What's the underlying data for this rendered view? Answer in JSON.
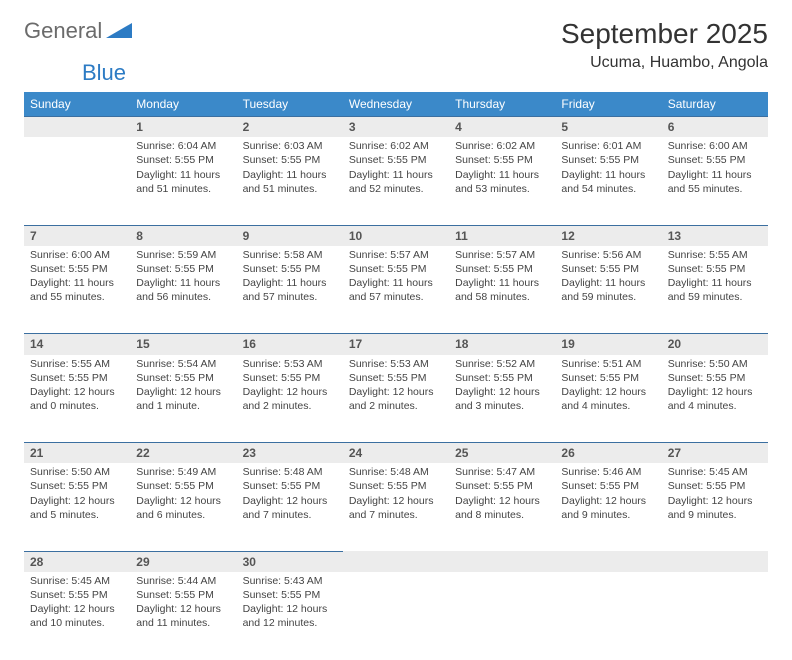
{
  "logo": {
    "general": "General",
    "blue": "Blue"
  },
  "title": "September 2025",
  "location": "Ucuma, Huambo, Angola",
  "colors": {
    "header_bg": "#3b89c9",
    "header_text": "#ffffff",
    "daynum_bg": "#ececec",
    "row_border": "#3b6fa0",
    "accent": "#2c7bc4",
    "logo_gray": "#6b6b6b"
  },
  "day_headers": [
    "Sunday",
    "Monday",
    "Tuesday",
    "Wednesday",
    "Thursday",
    "Friday",
    "Saturday"
  ],
  "weeks": [
    {
      "nums": [
        "",
        "1",
        "2",
        "3",
        "4",
        "5",
        "6"
      ],
      "cells": [
        null,
        {
          "sunrise": "6:04 AM",
          "sunset": "5:55 PM",
          "daylight": "11 hours and 51 minutes."
        },
        {
          "sunrise": "6:03 AM",
          "sunset": "5:55 PM",
          "daylight": "11 hours and 51 minutes."
        },
        {
          "sunrise": "6:02 AM",
          "sunset": "5:55 PM",
          "daylight": "11 hours and 52 minutes."
        },
        {
          "sunrise": "6:02 AM",
          "sunset": "5:55 PM",
          "daylight": "11 hours and 53 minutes."
        },
        {
          "sunrise": "6:01 AM",
          "sunset": "5:55 PM",
          "daylight": "11 hours and 54 minutes."
        },
        {
          "sunrise": "6:00 AM",
          "sunset": "5:55 PM",
          "daylight": "11 hours and 55 minutes."
        }
      ]
    },
    {
      "nums": [
        "7",
        "8",
        "9",
        "10",
        "11",
        "12",
        "13"
      ],
      "cells": [
        {
          "sunrise": "6:00 AM",
          "sunset": "5:55 PM",
          "daylight": "11 hours and 55 minutes."
        },
        {
          "sunrise": "5:59 AM",
          "sunset": "5:55 PM",
          "daylight": "11 hours and 56 minutes."
        },
        {
          "sunrise": "5:58 AM",
          "sunset": "5:55 PM",
          "daylight": "11 hours and 57 minutes."
        },
        {
          "sunrise": "5:57 AM",
          "sunset": "5:55 PM",
          "daylight": "11 hours and 57 minutes."
        },
        {
          "sunrise": "5:57 AM",
          "sunset": "5:55 PM",
          "daylight": "11 hours and 58 minutes."
        },
        {
          "sunrise": "5:56 AM",
          "sunset": "5:55 PM",
          "daylight": "11 hours and 59 minutes."
        },
        {
          "sunrise": "5:55 AM",
          "sunset": "5:55 PM",
          "daylight": "11 hours and 59 minutes."
        }
      ]
    },
    {
      "nums": [
        "14",
        "15",
        "16",
        "17",
        "18",
        "19",
        "20"
      ],
      "cells": [
        {
          "sunrise": "5:55 AM",
          "sunset": "5:55 PM",
          "daylight": "12 hours and 0 minutes."
        },
        {
          "sunrise": "5:54 AM",
          "sunset": "5:55 PM",
          "daylight": "12 hours and 1 minute."
        },
        {
          "sunrise": "5:53 AM",
          "sunset": "5:55 PM",
          "daylight": "12 hours and 2 minutes."
        },
        {
          "sunrise": "5:53 AM",
          "sunset": "5:55 PM",
          "daylight": "12 hours and 2 minutes."
        },
        {
          "sunrise": "5:52 AM",
          "sunset": "5:55 PM",
          "daylight": "12 hours and 3 minutes."
        },
        {
          "sunrise": "5:51 AM",
          "sunset": "5:55 PM",
          "daylight": "12 hours and 4 minutes."
        },
        {
          "sunrise": "5:50 AM",
          "sunset": "5:55 PM",
          "daylight": "12 hours and 4 minutes."
        }
      ]
    },
    {
      "nums": [
        "21",
        "22",
        "23",
        "24",
        "25",
        "26",
        "27"
      ],
      "cells": [
        {
          "sunrise": "5:50 AM",
          "sunset": "5:55 PM",
          "daylight": "12 hours and 5 minutes."
        },
        {
          "sunrise": "5:49 AM",
          "sunset": "5:55 PM",
          "daylight": "12 hours and 6 minutes."
        },
        {
          "sunrise": "5:48 AM",
          "sunset": "5:55 PM",
          "daylight": "12 hours and 7 minutes."
        },
        {
          "sunrise": "5:48 AM",
          "sunset": "5:55 PM",
          "daylight": "12 hours and 7 minutes."
        },
        {
          "sunrise": "5:47 AM",
          "sunset": "5:55 PM",
          "daylight": "12 hours and 8 minutes."
        },
        {
          "sunrise": "5:46 AM",
          "sunset": "5:55 PM",
          "daylight": "12 hours and 9 minutes."
        },
        {
          "sunrise": "5:45 AM",
          "sunset": "5:55 PM",
          "daylight": "12 hours and 9 minutes."
        }
      ]
    },
    {
      "nums": [
        "28",
        "29",
        "30",
        "",
        "",
        "",
        ""
      ],
      "cells": [
        {
          "sunrise": "5:45 AM",
          "sunset": "5:55 PM",
          "daylight": "12 hours and 10 minutes."
        },
        {
          "sunrise": "5:44 AM",
          "sunset": "5:55 PM",
          "daylight": "12 hours and 11 minutes."
        },
        {
          "sunrise": "5:43 AM",
          "sunset": "5:55 PM",
          "daylight": "12 hours and 12 minutes."
        },
        null,
        null,
        null,
        null
      ]
    }
  ],
  "labels": {
    "sunrise": "Sunrise:",
    "sunset": "Sunset:",
    "daylight": "Daylight:"
  }
}
